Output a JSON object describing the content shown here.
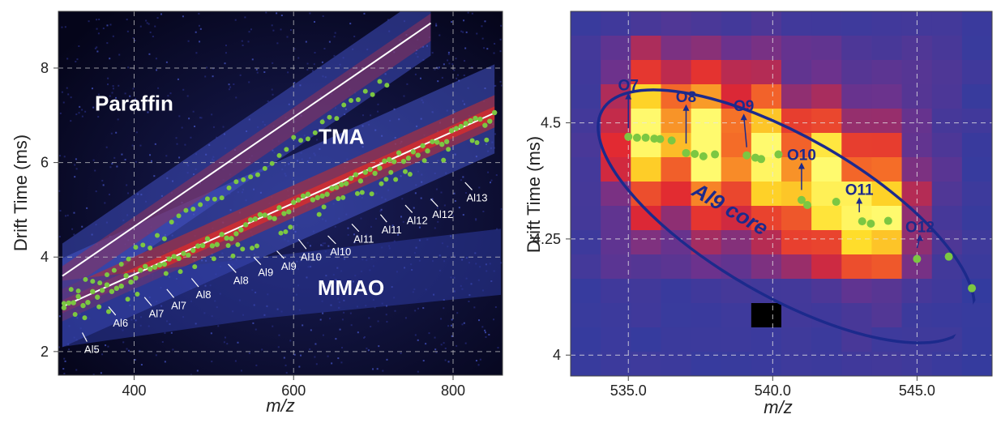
{
  "chart_data": [
    {
      "type": "heatmap",
      "xlabel": "m/z",
      "ylabel": "Drift Time (ms)",
      "xlim": [
        305,
        862
      ],
      "ylim": [
        1.5,
        9.2
      ],
      "xticks": [
        400,
        600,
        800
      ],
      "yticks": [
        2,
        4,
        6,
        8
      ],
      "xtick_labels": [
        "400",
        "600",
        "800"
      ],
      "ytick_labels": [
        "2",
        "4",
        "6",
        "8"
      ],
      "grid": true,
      "regions": [
        {
          "label": "Paraffin",
          "x": 400,
          "y": 7.1
        },
        {
          "label": "TMA",
          "x": 660,
          "y": 6.4
        },
        {
          "label": "MMAO",
          "x": 672,
          "y": 3.2
        }
      ],
      "trend_lines": [
        {
          "x": [
            310,
            772
          ],
          "y": [
            3.6,
            8.95
          ]
        },
        {
          "x": [
            310,
            852
          ],
          "y": [
            2.95,
            7.05
          ]
        }
      ],
      "series_labels": [
        {
          "label": "Al5",
          "x": 347,
          "y": 1.97,
          "ax": 335,
          "ay": 2.4
        },
        {
          "label": "Al6",
          "x": 383,
          "y": 2.53,
          "ax": 368,
          "ay": 2.95
        },
        {
          "label": "Al7",
          "x": 428,
          "y": 2.73,
          "ax": 413,
          "ay": 3.15
        },
        {
          "label": "Al7",
          "x": 456,
          "y": 2.9,
          "ax": 441,
          "ay": 3.32
        },
        {
          "label": "Al8",
          "x": 487,
          "y": 3.13,
          "ax": 472,
          "ay": 3.55
        },
        {
          "label": "Al8",
          "x": 534,
          "y": 3.43,
          "ax": 518,
          "ay": 3.85
        },
        {
          "label": "Al9",
          "x": 565,
          "y": 3.6,
          "ax": 550,
          "ay": 4.0
        },
        {
          "label": "Al9",
          "x": 594,
          "y": 3.73,
          "ax": 579,
          "ay": 4.13
        },
        {
          "label": "Al10",
          "x": 622,
          "y": 3.93,
          "ax": 606,
          "ay": 4.38
        },
        {
          "label": "Al10",
          "x": 659,
          "y": 4.04,
          "ax": 643,
          "ay": 4.45
        },
        {
          "label": "Al11",
          "x": 688,
          "y": 4.3,
          "ax": 673,
          "ay": 4.7
        },
        {
          "label": "Al11",
          "x": 723,
          "y": 4.5,
          "ax": 709,
          "ay": 4.9
        },
        {
          "label": "Al12",
          "x": 755,
          "y": 4.7,
          "ax": 740,
          "ay": 5.1
        },
        {
          "label": "Al12",
          "x": 787,
          "y": 4.83,
          "ax": 772,
          "ay": 5.23
        },
        {
          "label": "Al13",
          "x": 830,
          "y": 5.18,
          "ax": 815,
          "ay": 5.58
        }
      ]
    },
    {
      "type": "heatmap",
      "xlabel": "m/z",
      "ylabel": "Drift Time (ms)",
      "xlim": [
        533,
        547.6
      ],
      "ylim": [
        3.955,
        4.74
      ],
      "xticks": [
        535,
        540,
        545
      ],
      "yticks": [
        4.0,
        4.25,
        4.5
      ],
      "xtick_labels": [
        "535.0",
        "540.0",
        "545.0"
      ],
      "ytick_labels": [
        "4",
        "4.25",
        "4.5"
      ],
      "grid": true,
      "annotation": "Al9 core",
      "points": [
        {
          "x": 535.0,
          "y": 4.47
        },
        {
          "x": 535.3,
          "y": 4.468
        },
        {
          "x": 535.6,
          "y": 4.468
        },
        {
          "x": 535.9,
          "y": 4.466
        },
        {
          "x": 536.1,
          "y": 4.465
        },
        {
          "x": 536.5,
          "y": 4.462
        },
        {
          "x": 537.0,
          "y": 4.435
        },
        {
          "x": 537.3,
          "y": 4.433
        },
        {
          "x": 537.6,
          "y": 4.428
        },
        {
          "x": 538.0,
          "y": 4.432
        },
        {
          "x": 539.1,
          "y": 4.43
        },
        {
          "x": 539.4,
          "y": 4.425
        },
        {
          "x": 539.6,
          "y": 4.422
        },
        {
          "x": 540.2,
          "y": 4.432
        },
        {
          "x": 541.0,
          "y": 4.334
        },
        {
          "x": 541.2,
          "y": 4.323
        },
        {
          "x": 542.2,
          "y": 4.33
        },
        {
          "x": 543.1,
          "y": 4.288
        },
        {
          "x": 543.4,
          "y": 4.283
        },
        {
          "x": 544.0,
          "y": 4.289
        },
        {
          "x": 545.0,
          "y": 4.207
        },
        {
          "x": 546.1,
          "y": 4.212
        },
        {
          "x": 546.9,
          "y": 4.144
        }
      ],
      "point_labels": [
        {
          "label": "O7",
          "x": 535.0,
          "y": 4.57,
          "ax": 535.0,
          "ay": 4.478
        },
        {
          "label": "O8",
          "x": 537.0,
          "y": 4.545,
          "ax": 537.0,
          "ay": 4.445
        },
        {
          "label": "O9",
          "x": 539.0,
          "y": 4.525,
          "ax": 539.1,
          "ay": 4.437
        },
        {
          "label": "O10",
          "x": 541.0,
          "y": 4.42,
          "ax": 541.0,
          "ay": 4.345
        },
        {
          "label": "O11",
          "x": 543.0,
          "y": 4.345,
          "ax": 543.0,
          "ay": 4.297
        },
        {
          "label": "O12",
          "x": 545.1,
          "y": 4.265,
          "ax": 545.0,
          "ay": 4.22
        }
      ]
    }
  ],
  "colors": {
    "heat_low": "#08061a",
    "heat_mid": "#3448b0",
    "heat_high": "#ff2a1a",
    "heat_max": "#ffff40",
    "marker": "#7cc742",
    "annotation": "#1c2a8c"
  }
}
